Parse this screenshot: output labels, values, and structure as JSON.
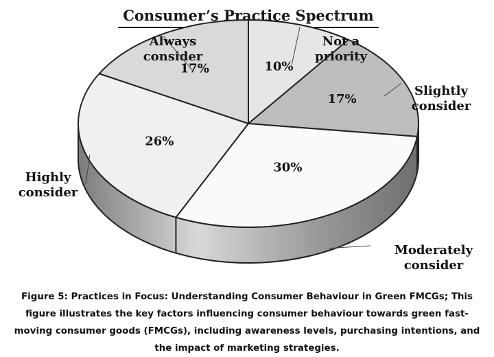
{
  "chart_data": {
    "type": "pie",
    "title": "Consumer’s Practice Spectrum",
    "categories": [
      "Not a priority",
      "Slightly consider",
      "Moderately consider",
      "Highly consider",
      "Always consider"
    ],
    "label_lines": [
      [
        "Not a",
        "priority"
      ],
      [
        "Slightly",
        "consider"
      ],
      [
        "Moderately",
        "consider"
      ],
      [
        "Highly",
        "consider"
      ],
      [
        "Always",
        "consider"
      ]
    ],
    "values": [
      10,
      17,
      30,
      26,
      17
    ],
    "value_labels": [
      "10%",
      "17%",
      "30%",
      "26%",
      "17%"
    ],
    "colors": [
      "#e6e6e6",
      "#bdbdbd",
      "#fafafa",
      "#f0f0f0",
      "#d9d9d9"
    ],
    "start_angle_deg": 0,
    "legend": "none",
    "style": "3d"
  },
  "caption": "Figure 5: Practices in Focus: Understanding Consumer Behaviour in Green FMCGs; This figure illustrates the key factors influencing consumer behaviour towards green fast-moving consumer goods (FMCGs), including awareness levels, purchasing intentions, and the impact of marketing strategies."
}
